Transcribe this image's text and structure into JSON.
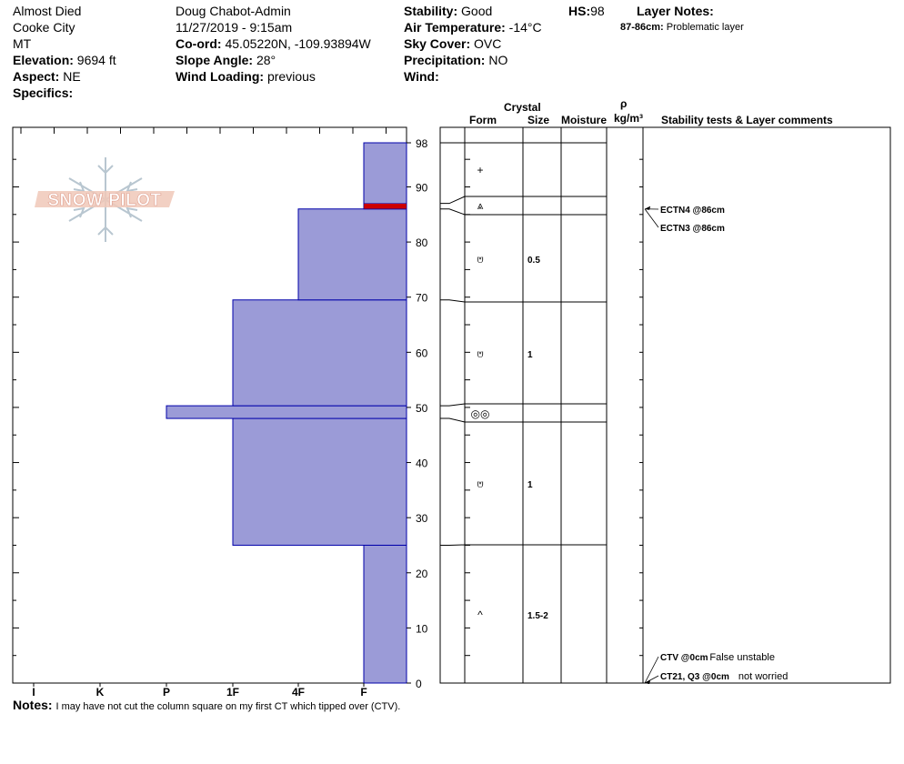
{
  "header": {
    "site": "Almost Died",
    "location": "Cooke City",
    "state": "MT",
    "elevation_label": "Elevation:",
    "elevation": "9694 ft",
    "aspect_label": "Aspect:",
    "aspect": "NE",
    "specifics_label": "Specifics:",
    "observer": "Doug Chabot-Admin",
    "datetime": "11/27/2019 - 9:15am",
    "coord_label": "Co-ord:",
    "coord": "45.05220N, -109.93894W",
    "slope_label": "Slope Angle:",
    "slope": "28°",
    "wind_loading_label": "Wind Loading:",
    "wind_loading": "previous",
    "stability_label": "Stability:",
    "stability": "Good",
    "air_temp_label": "Air Temperature:",
    "air_temp": "-14°C",
    "sky_label": "Sky Cover:",
    "sky": "OVC",
    "precip_label": "Precipitation:",
    "precip": "NO",
    "wind_label": "Wind:",
    "hs_label": "HS:",
    "hs": "98",
    "layer_notes_label": "Layer Notes:",
    "layer_note_range": "87-86cm:",
    "layer_note_text": "Problematic layer"
  },
  "logo_text": "SNOW PILOT",
  "columns": {
    "crystal": "Crystal",
    "form": "Form",
    "size": "Size",
    "moisture": "Moisture",
    "rho": "ρ",
    "density": "kg/m³",
    "stability": "Stability tests & Layer comments"
  },
  "notes": {
    "label": "Notes:",
    "text": "I may have not cut the column square on my first CT which tipped over (CTV)."
  },
  "chart_data": {
    "type": "bar",
    "orientation": "horizontal",
    "title": "",
    "xlabel": "",
    "ylabel": "",
    "x_categories": [
      "I",
      "K",
      "P",
      "1F",
      "4F",
      "F"
    ],
    "y_ticks": [
      0,
      10,
      20,
      30,
      40,
      50,
      60,
      70,
      80,
      90,
      98
    ],
    "ylim": [
      0,
      98
    ],
    "bar_color": "#9b9bd7",
    "layers": [
      {
        "bottom": 0,
        "top": 25,
        "hardness": "F"
      },
      {
        "bottom": 25,
        "top": 48,
        "hardness": "1F"
      },
      {
        "bottom": 48,
        "top": 50.3,
        "hardness": "P"
      },
      {
        "bottom": 50.3,
        "top": 69.5,
        "hardness": "1F"
      },
      {
        "bottom": 69.5,
        "top": 86,
        "hardness": "4F"
      },
      {
        "bottom": 86,
        "top": 98,
        "hardness": "F"
      }
    ],
    "problem_layer": {
      "bottom": 86,
      "top": 87,
      "color": "#cc0000"
    },
    "crystal_rows": [
      {
        "top": 98,
        "bottom": 87,
        "form": "+",
        "size": "",
        "pos_cm": 93
      },
      {
        "top": 87,
        "bottom": 86,
        "form": "⩓",
        "size": "",
        "pos_cm": 86.5
      },
      {
        "top": 86,
        "bottom": 69.5,
        "form": "⩅",
        "size": "0.5",
        "pos_cm": 77
      },
      {
        "top": 69.5,
        "bottom": 50.3,
        "form": "⩅",
        "size": "1",
        "pos_cm": 60
      },
      {
        "top": 50.3,
        "bottom": 48,
        "form": "◎◎",
        "size": "",
        "pos_cm": 49
      },
      {
        "top": 48,
        "bottom": 25,
        "form": "⩅",
        "size": "1",
        "pos_cm": 36
      },
      {
        "top": 25,
        "bottom": 0,
        "form": "^",
        "size": "1.5-2",
        "pos_cm": 12
      }
    ],
    "stability_tests": [
      {
        "label": "ECTN4 @86cm",
        "comment": "",
        "depth": 86
      },
      {
        "label": "ECTN3 @86cm",
        "comment": "",
        "depth": 86
      },
      {
        "label": "CTV @0cm",
        "comment": "False unstable",
        "depth": 0
      },
      {
        "label": "CT21, Q3 @0cm",
        "comment": "not worried",
        "depth": 0
      }
    ]
  }
}
